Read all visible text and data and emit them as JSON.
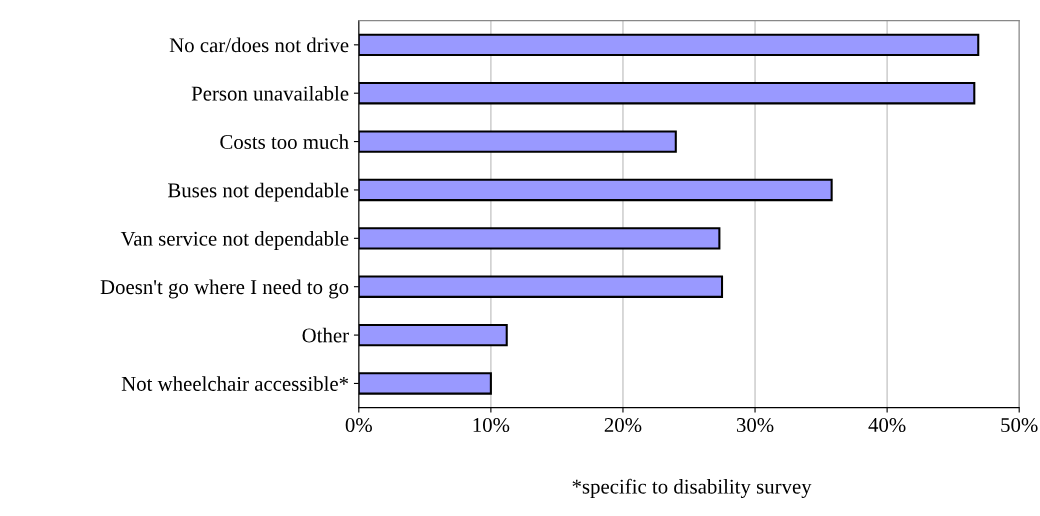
{
  "chart_data": {
    "type": "bar",
    "orientation": "horizontal",
    "categories": [
      "No car/does not drive",
      "Person unavailable",
      "Costs too much",
      "Buses not dependable",
      "Van service not dependable",
      "Doesn't go where I need to go",
      "Other",
      "Not wheelchair accessible*"
    ],
    "values": [
      46.9,
      46.6,
      24.0,
      35.8,
      27.3,
      27.5,
      11.2,
      10.0
    ],
    "color": "#9999ff",
    "xlim": [
      0,
      50
    ],
    "xticks": [
      {
        "value": 0,
        "label": "0%"
      },
      {
        "value": 10,
        "label": "10%"
      },
      {
        "value": 20,
        "label": "20%"
      },
      {
        "value": 30,
        "label": "30%"
      },
      {
        "value": 40,
        "label": "40%"
      },
      {
        "value": 50,
        "label": "50%"
      }
    ],
    "grid": "x",
    "annotations": [
      "*specific to disability survey"
    ]
  }
}
